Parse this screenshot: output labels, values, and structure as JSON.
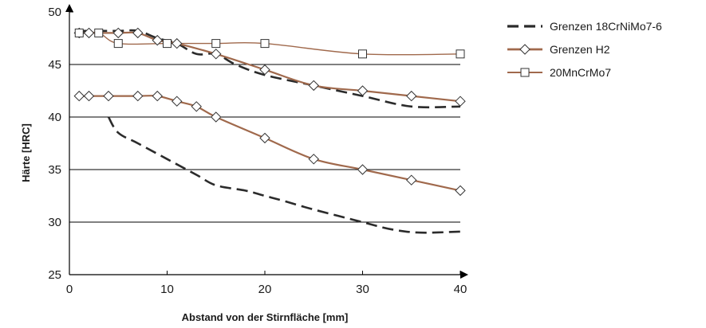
{
  "chart_data": {
    "type": "line",
    "title": "",
    "xlabel": "Abstand von der Stirnfläche [mm]",
    "ylabel": "Härte [HRC]",
    "xlim": [
      0,
      40
    ],
    "ylim": [
      25,
      50
    ],
    "xticks": [
      0,
      10,
      20,
      30,
      40
    ],
    "yticks": [
      25,
      30,
      35,
      40,
      45,
      50
    ],
    "grid": "horizontal",
    "legend_position": "right",
    "colors": {
      "dashed": "#2b2b2b",
      "h2": "#a0694c",
      "mncrmo": "#a0694c",
      "grid": "#000000"
    },
    "series": [
      {
        "name": "Grenzen 18CrNiMo7-6",
        "style": "dashed",
        "marker": "none",
        "curves": [
          {
            "x": [
              1,
              3,
              5,
              7,
              9,
              11,
              13,
              15,
              17,
              20,
              25,
              30,
              35,
              40
            ],
            "y": [
              48.2,
              48.2,
              48.2,
              48.2,
              47.5,
              47.0,
              46.0,
              46.0,
              45.0,
              44.0,
              43.0,
              42.0,
              41.0,
              41.0
            ]
          },
          {
            "x": [
              4,
              5,
              7,
              10,
              13,
              15,
              18,
              20,
              22,
              25,
              30,
              33,
              36,
              40
            ],
            "y": [
              40.0,
              38.5,
              37.5,
              36.0,
              34.5,
              33.5,
              33.0,
              32.5,
              32.0,
              31.2,
              30.0,
              29.3,
              29.0,
              29.1
            ]
          }
        ]
      },
      {
        "name": "Grenzen H2",
        "style": "solid",
        "marker": "diamond",
        "curves": [
          {
            "x": [
              1,
              2,
              5,
              7,
              9,
              11,
              15,
              20,
              25,
              30,
              35,
              40
            ],
            "y": [
              48.0,
              48.0,
              48.0,
              48.0,
              47.3,
              47.0,
              46.0,
              44.5,
              43.0,
              42.5,
              42.0,
              41.5
            ]
          },
          {
            "x": [
              1,
              2,
              4,
              7,
              9,
              11,
              13,
              15,
              20,
              25,
              30,
              35,
              40
            ],
            "y": [
              42.0,
              42.0,
              42.0,
              42.0,
              42.0,
              41.5,
              41.0,
              40.0,
              38.0,
              36.0,
              35.0,
              34.0,
              33.0
            ]
          }
        ]
      },
      {
        "name": "20MnCrMo7",
        "style": "solid",
        "marker": "square",
        "curves": [
          {
            "x": [
              1,
              3,
              5,
              10,
              15,
              20,
              30,
              40
            ],
            "y": [
              48.0,
              48.0,
              47.0,
              47.0,
              47.0,
              47.0,
              46.0,
              46.0
            ]
          }
        ]
      }
    ]
  }
}
